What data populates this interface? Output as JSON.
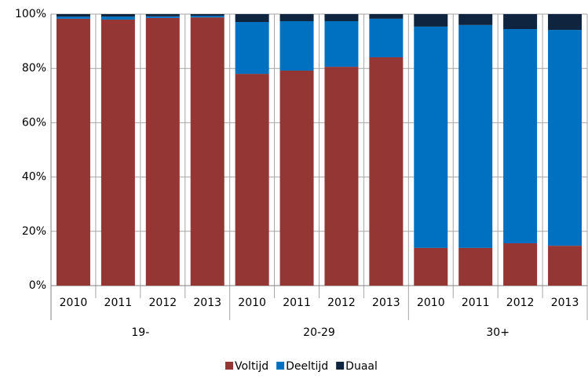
{
  "chart_data": {
    "type": "stacked_bar",
    "categories": [
      "2010",
      "2011",
      "2012",
      "2013",
      "2010",
      "2011",
      "2012",
      "2013",
      "2010",
      "2011",
      "2012",
      "2013"
    ],
    "groups": [
      "19-",
      "20-29",
      "30+"
    ],
    "series": [
      {
        "name": "Voltijd",
        "color": "#943634",
        "values": [
          98.3,
          98.0,
          98.6,
          98.8,
          78.0,
          79.2,
          80.6,
          84.1,
          13.9,
          13.9,
          15.6,
          14.7
        ]
      },
      {
        "name": "Deeltijd",
        "color": "#0070c0",
        "values": [
          0.8,
          1.1,
          0.6,
          0.6,
          19.1,
          18.2,
          16.8,
          14.2,
          81.5,
          82.1,
          78.9,
          79.5
        ]
      },
      {
        "name": "Duaal",
        "color": "#0f243e",
        "values": [
          0.9,
          0.9,
          0.8,
          0.6,
          2.9,
          2.6,
          2.6,
          1.7,
          4.6,
          4.0,
          5.5,
          5.8
        ]
      }
    ],
    "ylim": [
      0,
      100
    ],
    "yticks": [
      {
        "value": 0,
        "label": "0%"
      },
      {
        "value": 20,
        "label": "20%"
      },
      {
        "value": 40,
        "label": "40%"
      },
      {
        "value": 60,
        "label": "60%"
      },
      {
        "value": 80,
        "label": "80%"
      },
      {
        "value": 100,
        "label": "100%"
      }
    ],
    "grid": true,
    "legend": "bottom"
  }
}
